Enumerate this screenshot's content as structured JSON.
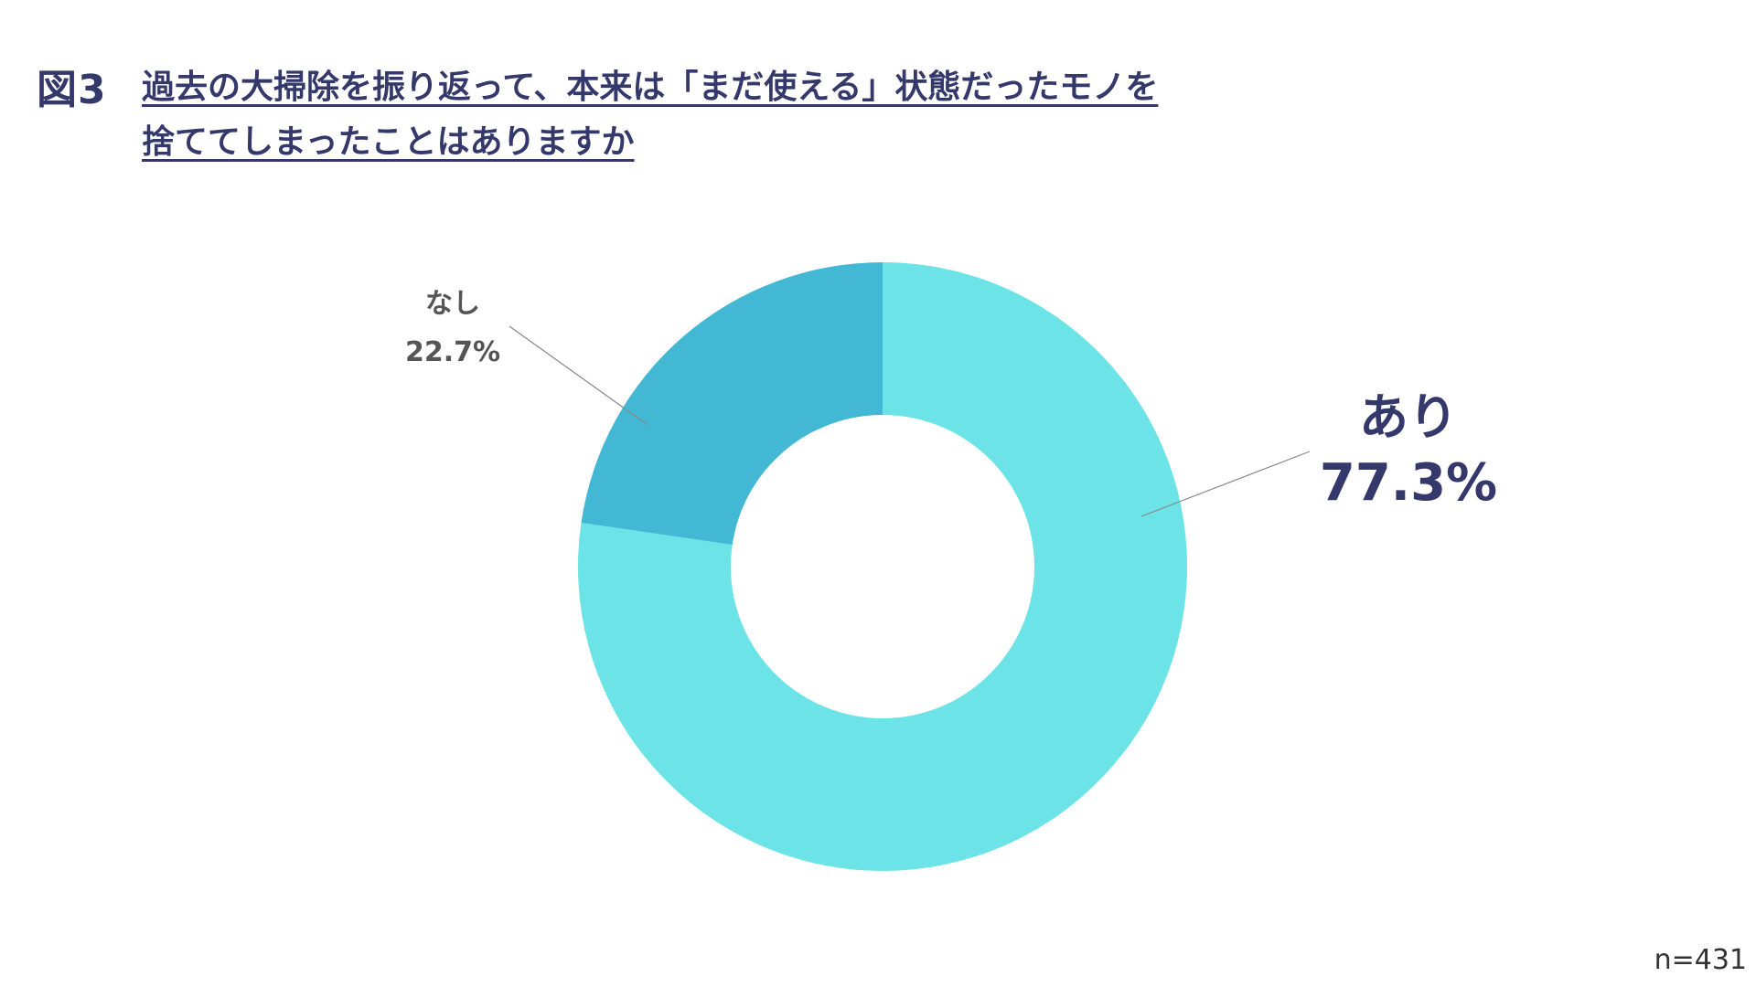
{
  "figure_number": "図3",
  "title_lines": [
    "過去の大掃除を振り返って、本来は「まだ使える」状態だったモノを",
    "捨ててしまったことはありますか"
  ],
  "sample_size": "n=431",
  "colors": {
    "title": "#34386b",
    "ari": "#6ce3e7",
    "nashi": "#43b8d4",
    "leader": "#888888"
  },
  "chart_data": {
    "type": "pie",
    "variant": "donut",
    "start": "top, clockwise",
    "slices": [
      {
        "label": "あり",
        "value": 77.3,
        "value_label": "77.3%",
        "color": "#6ce3e7"
      },
      {
        "label": "なし",
        "value": 22.7,
        "value_label": "22.7%",
        "color": "#43b8d4"
      }
    ]
  }
}
